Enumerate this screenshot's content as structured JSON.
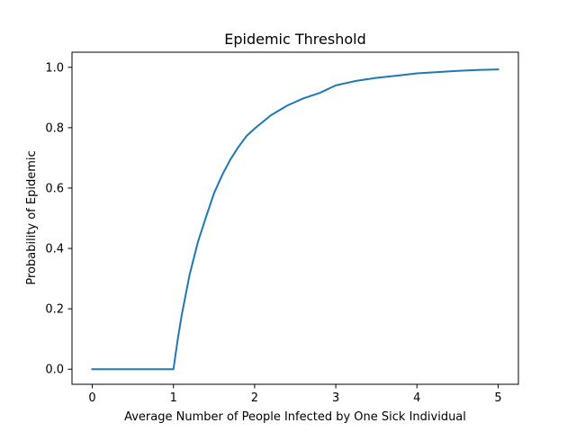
{
  "chart_data": {
    "type": "line",
    "title": "Epidemic Threshold",
    "xlabel": "Average Number of People Infected by One Sick Individual",
    "ylabel": "Probability of Epidemic",
    "xlim": [
      -0.25,
      5.25
    ],
    "ylim": [
      -0.05,
      1.05
    ],
    "xticks": [
      0,
      1,
      2,
      3,
      4,
      5
    ],
    "yticks": [
      0.0,
      0.2,
      0.4,
      0.6,
      0.8,
      1.0
    ],
    "xtick_labels": [
      "0",
      "1",
      "2",
      "3",
      "4",
      "5"
    ],
    "ytick_labels": [
      "0.0",
      "0.2",
      "0.4",
      "0.6",
      "0.8",
      "1.0"
    ],
    "grid": false,
    "series": [
      {
        "color": "#1f77b4",
        "x": [
          0.0,
          0.5,
          1.0,
          1.05,
          1.1,
          1.2,
          1.3,
          1.4,
          1.5,
          1.6,
          1.7,
          1.8,
          1.9,
          2.0,
          2.2,
          2.4,
          2.6,
          2.8,
          3.0,
          3.25,
          3.5,
          3.75,
          4.0,
          4.25,
          4.5,
          4.75,
          5.0
        ],
        "y": [
          0.0,
          0.0,
          0.0,
          0.094,
          0.177,
          0.314,
          0.42,
          0.503,
          0.583,
          0.643,
          0.694,
          0.736,
          0.772,
          0.797,
          0.841,
          0.873,
          0.897,
          0.915,
          0.94,
          0.955,
          0.965,
          0.972,
          0.98,
          0.984,
          0.988,
          0.991,
          0.993
        ]
      }
    ]
  }
}
